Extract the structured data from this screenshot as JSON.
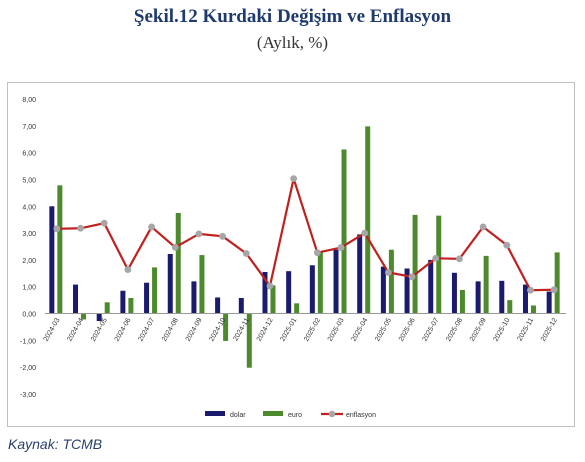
{
  "header": {
    "title": "Şekil.12 Kurdaki Değişim ve Enflasyon",
    "subtitle": "(Aylık, %)"
  },
  "source": "Kaynak: TCMB",
  "chart_data": {
    "type": "bar",
    "categories": [
      "2024-03",
      "2024-04",
      "2024-05",
      "2024-06",
      "2024-07",
      "2024-08",
      "2024-09",
      "2024-10",
      "2024-11",
      "2024-12",
      "2025-01",
      "2025-02",
      "2025-03",
      "2025-04",
      "2025-05",
      "2025-06",
      "2025-07",
      "2025-08",
      "2025-09",
      "2025-10",
      "2025-11",
      "2025-12"
    ],
    "y_tick_labels": [
      "8,00",
      "7,00",
      "6,00",
      "5,00",
      "4,00",
      "3,00",
      "2,00",
      "1,00",
      "0,00",
      "-1,00",
      "-2,00",
      "-3,00"
    ],
    "ylim": [
      -3,
      8
    ],
    "grid": false,
    "legend_position": "bottom",
    "series": [
      {
        "name": "dolar",
        "type": "bar",
        "color": "#1a1a6e",
        "values": [
          4.0,
          1.08,
          -0.28,
          0.85,
          1.15,
          2.22,
          1.2,
          0.6,
          0.58,
          1.55,
          1.58,
          1.8,
          2.38,
          2.95,
          1.75,
          1.68,
          2.0,
          1.52,
          1.2,
          1.22,
          1.08,
          0.82
        ]
      },
      {
        "name": "euro",
        "type": "bar",
        "color": "#4d8a2e",
        "values": [
          4.78,
          -0.22,
          0.42,
          0.58,
          1.72,
          3.75,
          2.18,
          -1.02,
          -2.02,
          1.05,
          0.38,
          2.32,
          6.12,
          6.98,
          2.38,
          3.68,
          3.65,
          0.88,
          2.15,
          0.5,
          0.3,
          2.28
        ]
      },
      {
        "name": "enflasyon",
        "type": "line",
        "color": "#c0201e",
        "marker_color": "#a6a6a6",
        "values": [
          3.16,
          3.18,
          3.37,
          1.64,
          3.23,
          2.47,
          2.97,
          2.88,
          2.24,
          1.03,
          5.03,
          2.27,
          2.46,
          3.0,
          1.53,
          1.37,
          2.06,
          2.04,
          3.23,
          2.55,
          0.87,
          0.89
        ]
      }
    ]
  }
}
